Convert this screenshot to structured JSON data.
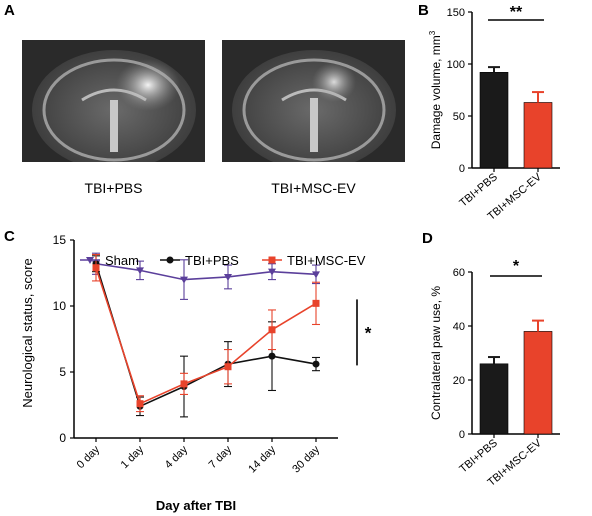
{
  "panel_a": {
    "letter": "A",
    "captions": [
      "TBI+PBS",
      "TBI+MSC-EV"
    ]
  },
  "chart_data": [
    {
      "panel": "B",
      "type": "bar",
      "title": "",
      "xlabel": "",
      "ylabel": "Damage volume, mm",
      "ylabel_sup": "3",
      "categories": [
        "TBI+PBS",
        "TBI+MSC-EV"
      ],
      "values": [
        92,
        63
      ],
      "errors": [
        5,
        10
      ],
      "ylim": [
        0,
        150
      ],
      "yticks": [
        0,
        50,
        100,
        150
      ],
      "significance": "**",
      "colors": [
        "#1a1a1a",
        "#e8432b"
      ]
    },
    {
      "panel": "C",
      "type": "line",
      "title": "",
      "xlabel": "Day after TBI",
      "ylabel": "Neurological status, score",
      "categories": [
        "0 day",
        "1 day",
        "4 day",
        "7 day",
        "14 day",
        "30 day"
      ],
      "ylim": [
        0,
        15
      ],
      "yticks": [
        0,
        5,
        10,
        15
      ],
      "legend": "top",
      "significance": "*",
      "series": [
        {
          "name": "Sham",
          "color": "#5b3f9b",
          "marker": "triangle",
          "values": [
            13.2,
            12.7,
            12.0,
            12.2,
            12.6,
            12.4
          ],
          "errors": [
            0.8,
            0.7,
            1.5,
            0.9,
            0.6,
            0.7
          ]
        },
        {
          "name": "TBI+PBS",
          "color": "#111111",
          "marker": "circle",
          "values": [
            13.2,
            2.4,
            3.9,
            5.6,
            6.2,
            5.6
          ],
          "errors": [
            0.6,
            0.7,
            2.3,
            1.7,
            2.6,
            0.5
          ]
        },
        {
          "name": "TBI+MSC-EV",
          "color": "#e8432b",
          "marker": "square",
          "values": [
            12.9,
            2.6,
            4.1,
            5.4,
            8.2,
            10.2
          ],
          "errors": [
            1.0,
            0.6,
            0.8,
            1.3,
            1.5,
            1.6
          ]
        }
      ]
    },
    {
      "panel": "D",
      "type": "bar",
      "title": "",
      "xlabel": "",
      "ylabel": "Contralateral paw use, %",
      "categories": [
        "TBI+PBS",
        "TBI+MSC-EV"
      ],
      "values": [
        26,
        38
      ],
      "errors": [
        2.5,
        4
      ],
      "ylim": [
        0,
        60
      ],
      "yticks": [
        0,
        20,
        40,
        60
      ],
      "significance": "*",
      "colors": [
        "#1a1a1a",
        "#e8432b"
      ]
    }
  ]
}
